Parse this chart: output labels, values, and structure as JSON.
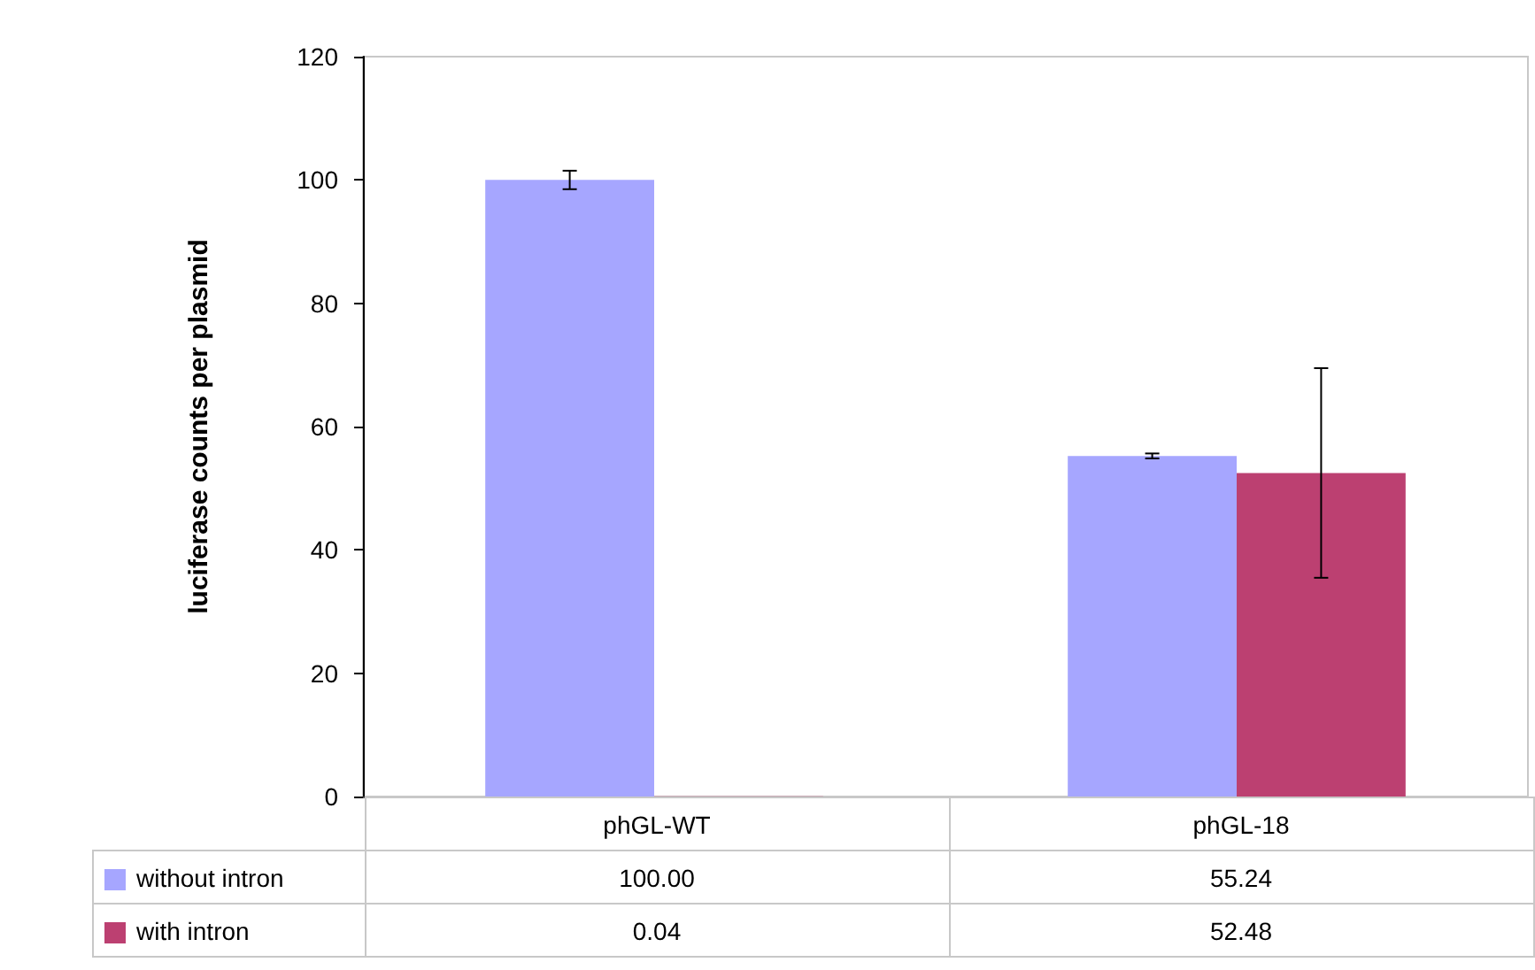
{
  "chart_data": {
    "type": "bar",
    "ylabel": "luciferase counts per plasmid",
    "categories": [
      "phGL-WT",
      "phGL-18"
    ],
    "series": [
      {
        "name": "without intron",
        "color": "#a6a6ff",
        "values": [
          100.0,
          55.24
        ],
        "errors": [
          1.5,
          0.4
        ],
        "value_labels": [
          "100.00",
          "55.24"
        ]
      },
      {
        "name": "with intron",
        "color": "#bc4071",
        "values": [
          0.04,
          52.48
        ],
        "errors": [
          null,
          17
        ],
        "value_labels": [
          "0.04",
          "52.48"
        ]
      }
    ],
    "ylim": [
      0,
      120
    ],
    "yticks": [
      0,
      20,
      40,
      60,
      80,
      100,
      120
    ],
    "grid": false,
    "legend": "bottom"
  }
}
